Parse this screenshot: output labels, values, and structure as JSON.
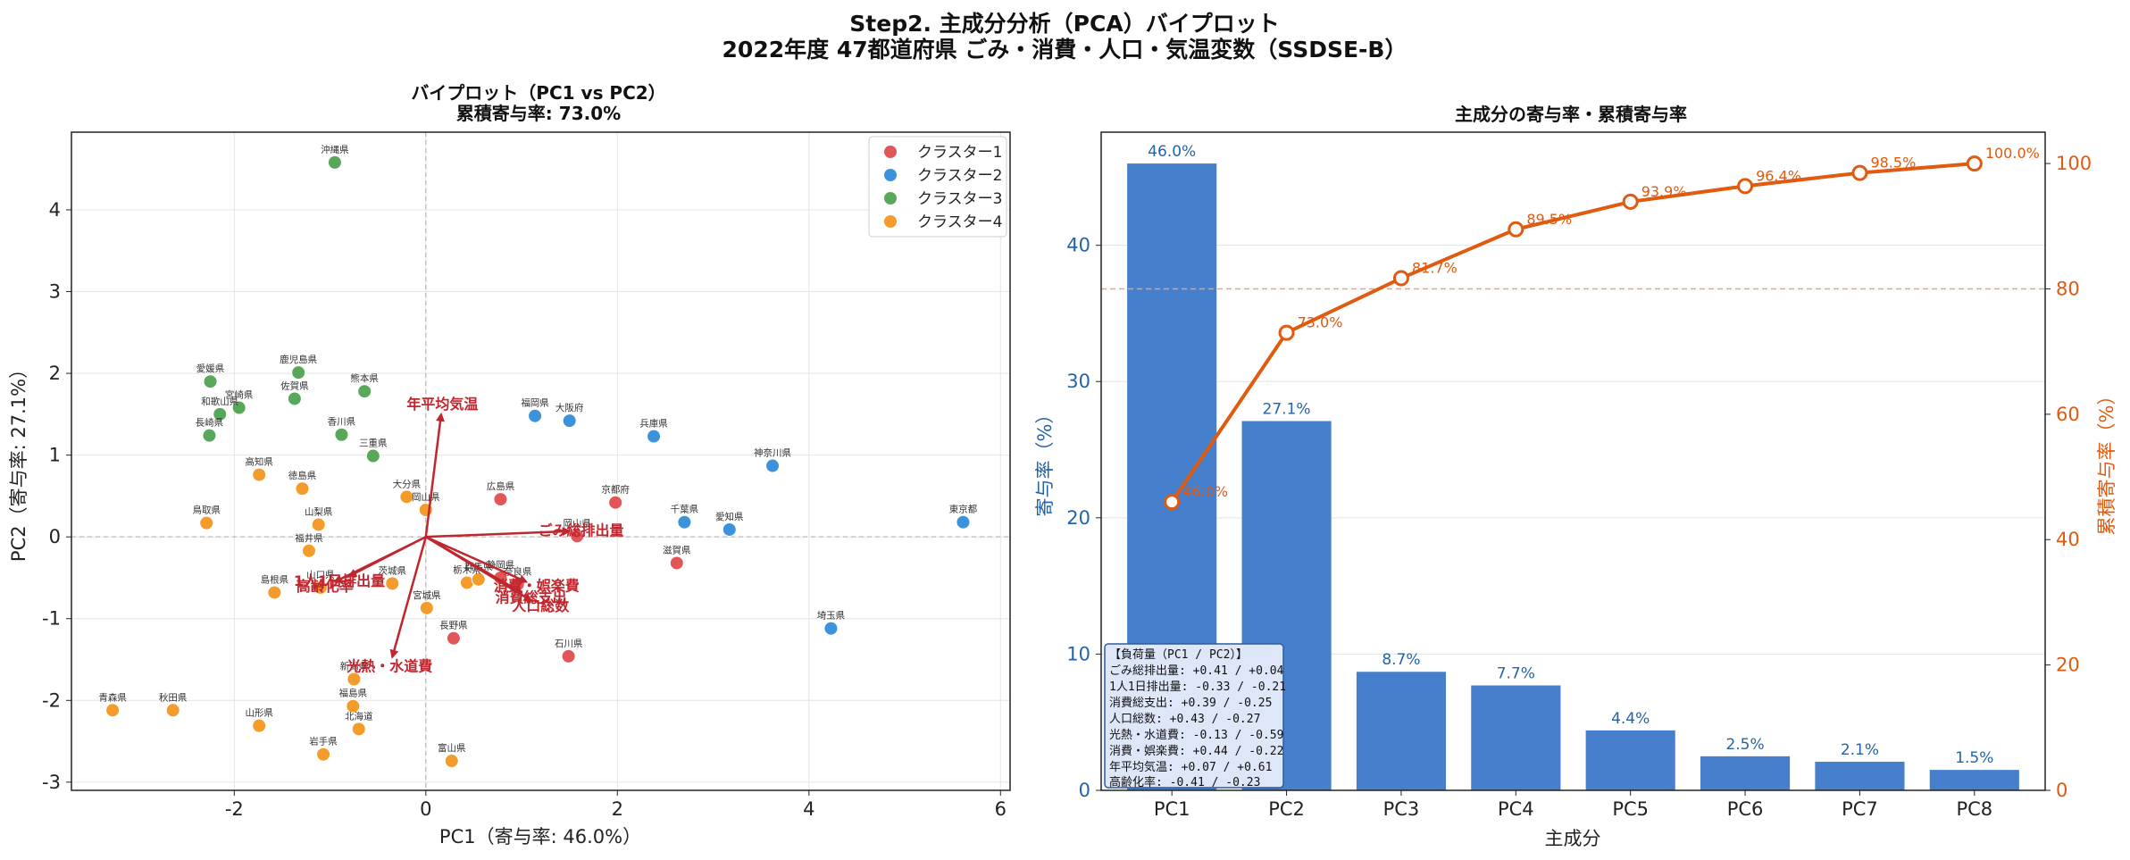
{
  "figure": {
    "title_line1": "Step2. 主成分分析（PCA）バイプロット",
    "title_line2": "2022年度 47都道府県 ごみ・消費・人口・気温変数（SSDSE-B）"
  },
  "colors": {
    "cluster1": "#e15759",
    "cluster2": "#3c93dc",
    "cluster3": "#59a85a",
    "cluster4": "#f39c2b",
    "arrow": "#c0262d",
    "bar": "#4680cc",
    "cum_line": "#e05a10",
    "left_axis": "#2563a8"
  },
  "chart_data": [
    {
      "type": "scatter",
      "title_line1": "バイプロット（PC1 vs PC2）",
      "title_line2": "累積寄与率: 73.0%",
      "xlabel": "PC1（寄与率: 46.0%）",
      "ylabel": "PC2（寄与率: 27.1%）",
      "xlim": [
        -3.7,
        6.1
      ],
      "ylim": [
        -3.1,
        4.95
      ],
      "xticks": [
        -2,
        0,
        2,
        4,
        6
      ],
      "yticks": [
        -3,
        -2,
        -1,
        0,
        1,
        2,
        3,
        4
      ],
      "grid": true,
      "legend_position": "top-right",
      "legend": [
        "クラスター1",
        "クラスター2",
        "クラスター3",
        "クラスター4"
      ],
      "points": [
        {
          "label": "沖縄県",
          "x": -0.95,
          "y": 4.58,
          "cluster": 3
        },
        {
          "label": "愛媛県",
          "x": -2.25,
          "y": 1.9,
          "cluster": 3
        },
        {
          "label": "鹿児島県",
          "x": -1.33,
          "y": 2.01,
          "cluster": 3
        },
        {
          "label": "熊本県",
          "x": -0.64,
          "y": 1.78,
          "cluster": 3
        },
        {
          "label": "和歌山県",
          "x": -2.15,
          "y": 1.5,
          "cluster": 3
        },
        {
          "label": "宮崎県",
          "x": -1.95,
          "y": 1.58,
          "cluster": 3
        },
        {
          "label": "佐賀県",
          "x": -1.37,
          "y": 1.69,
          "cluster": 3
        },
        {
          "label": "長崎県",
          "x": -2.26,
          "y": 1.24,
          "cluster": 3
        },
        {
          "label": "香川県",
          "x": -0.88,
          "y": 1.25,
          "cluster": 3
        },
        {
          "label": "三重県",
          "x": -0.55,
          "y": 0.99,
          "cluster": 3
        },
        {
          "label": "高知県",
          "x": -1.74,
          "y": 0.76,
          "cluster": 4
        },
        {
          "label": "徳島県",
          "x": -1.29,
          "y": 0.59,
          "cluster": 4
        },
        {
          "label": "鳥取県",
          "x": -2.29,
          "y": 0.17,
          "cluster": 4
        },
        {
          "label": "山梨県",
          "x": -1.12,
          "y": 0.15,
          "cluster": 4
        },
        {
          "label": "大分県",
          "x": -0.2,
          "y": 0.49,
          "cluster": 4
        },
        {
          "label": "岡山県",
          "x": 0.0,
          "y": 0.33,
          "cluster": 4
        },
        {
          "label": "福井県",
          "x": -1.22,
          "y": -0.17,
          "cluster": 4
        },
        {
          "label": "山口県",
          "x": -1.1,
          "y": -0.62,
          "cluster": 4
        },
        {
          "label": "島根県",
          "x": -1.58,
          "y": -0.68,
          "cluster": 4
        },
        {
          "label": "茨城県",
          "x": -0.35,
          "y": -0.57,
          "cluster": 4
        },
        {
          "label": "宮城県",
          "x": 0.01,
          "y": -0.87,
          "cluster": 4
        },
        {
          "label": "栃木県",
          "x": 0.43,
          "y": -0.56,
          "cluster": 4
        },
        {
          "label": "群馬県",
          "x": 0.55,
          "y": -0.52,
          "cluster": 4
        },
        {
          "label": "青森県",
          "x": -3.27,
          "y": -2.12,
          "cluster": 4
        },
        {
          "label": "秋田県",
          "x": -2.64,
          "y": -2.12,
          "cluster": 4
        },
        {
          "label": "山形県",
          "x": -1.74,
          "y": -2.31,
          "cluster": 4
        },
        {
          "label": "福島県",
          "x": -0.76,
          "y": -2.07,
          "cluster": 4
        },
        {
          "label": "北海道",
          "x": -0.7,
          "y": -2.35,
          "cluster": 4
        },
        {
          "label": "岩手県",
          "x": -1.07,
          "y": -2.66,
          "cluster": 4
        },
        {
          "label": "富山県",
          "x": 0.27,
          "y": -2.74,
          "cluster": 4
        },
        {
          "label": "新潟県",
          "x": -0.75,
          "y": -1.74,
          "cluster": 4
        },
        {
          "label": "広島県",
          "x": 0.78,
          "y": 0.46,
          "cluster": 1
        },
        {
          "label": "京都府",
          "x": 1.98,
          "y": 0.42,
          "cluster": 1
        },
        {
          "label": "岡山県",
          "x": 1.58,
          "y": 0.01,
          "cluster": 1
        },
        {
          "label": "静岡県",
          "x": 0.78,
          "y": -0.5,
          "cluster": 1
        },
        {
          "label": "奈良県",
          "x": 0.96,
          "y": -0.58,
          "cluster": 1
        },
        {
          "label": "滋賀県",
          "x": 2.62,
          "y": -0.32,
          "cluster": 1
        },
        {
          "label": "長野県",
          "x": 0.29,
          "y": -1.24,
          "cluster": 1
        },
        {
          "label": "石川県",
          "x": 1.49,
          "y": -1.46,
          "cluster": 1
        },
        {
          "label": "福岡県",
          "x": 1.14,
          "y": 1.48,
          "cluster": 2
        },
        {
          "label": "大阪府",
          "x": 1.5,
          "y": 1.42,
          "cluster": 2
        },
        {
          "label": "兵庫県",
          "x": 2.38,
          "y": 1.23,
          "cluster": 2
        },
        {
          "label": "神奈川県",
          "x": 3.62,
          "y": 0.87,
          "cluster": 2
        },
        {
          "label": "千葉県",
          "x": 2.7,
          "y": 0.18,
          "cluster": 2
        },
        {
          "label": "愛知県",
          "x": 3.17,
          "y": 0.09,
          "cluster": 2
        },
        {
          "label": "東京都",
          "x": 5.61,
          "y": 0.18,
          "cluster": 2
        },
        {
          "label": "埼玉県",
          "x": 4.23,
          "y": -1.12,
          "cluster": 2
        }
      ],
      "arrows": [
        {
          "label": "年平均気温",
          "x": 0.16,
          "y": 1.5
        },
        {
          "label": "ごみ総排出量",
          "x": 1.5,
          "y": 0.07
        },
        {
          "label": "高齢化率",
          "x": -0.95,
          "y": -0.55
        },
        {
          "label": "1人1日排出量",
          "x": -0.8,
          "y": -0.48
        },
        {
          "label": "消費・娯楽費",
          "x": 1.05,
          "y": -0.55
        },
        {
          "label": "消費総支出",
          "x": 1.0,
          "y": -0.68
        },
        {
          "label": "人口総数",
          "x": 1.1,
          "y": -0.78
        },
        {
          "label": "光熱・水道費",
          "x": -0.35,
          "y": -1.47
        }
      ]
    },
    {
      "type": "bar",
      "title": "主成分の寄与率・累積寄与率",
      "xlabel": "主成分",
      "ylabel": "寄与率（%）",
      "y2label": "累積寄与率（%）",
      "categories": [
        "PC1",
        "PC2",
        "PC3",
        "PC4",
        "PC5",
        "PC6",
        "PC7",
        "PC8"
      ],
      "ylim": [
        0,
        48.3
      ],
      "yticks": [
        0,
        10,
        20,
        30,
        40
      ],
      "y2lim": [
        0,
        105
      ],
      "y2ticks": [
        0,
        20,
        40,
        60,
        80,
        100
      ],
      "reference_line_y2": 80,
      "series": [
        {
          "type": "bar",
          "values": [
            46.0,
            27.1,
            8.7,
            7.7,
            4.4,
            2.5,
            2.1,
            1.5
          ],
          "labels": [
            "46.0%",
            "27.1%",
            "8.7%",
            "7.7%",
            "4.4%",
            "2.5%",
            "2.1%",
            "1.5%"
          ]
        },
        {
          "type": "line",
          "axis": "right",
          "values": [
            46.0,
            73.0,
            81.7,
            89.5,
            93.9,
            96.4,
            98.5,
            100.0
          ],
          "labels": [
            "46.0%",
            "73.0%",
            "81.7%",
            "89.5%",
            "93.9%",
            "96.4%",
            "98.5%",
            "100.0%"
          ]
        }
      ],
      "loadings_box": {
        "title": "【負荷量（PC1 / PC2）】",
        "lines": [
          "ごみ総排出量: +0.41 / +0.04",
          "1人1日排出量: -0.33 / -0.21",
          "消費総支出: +0.39 / -0.25",
          "人口総数: +0.43 / -0.27",
          "光熱・水道費: -0.13 / -0.59",
          "消費・娯楽費: +0.44 / -0.22",
          "年平均気温: +0.07 / +0.61",
          "高齢化率: -0.41 / -0.23"
        ]
      }
    }
  ]
}
